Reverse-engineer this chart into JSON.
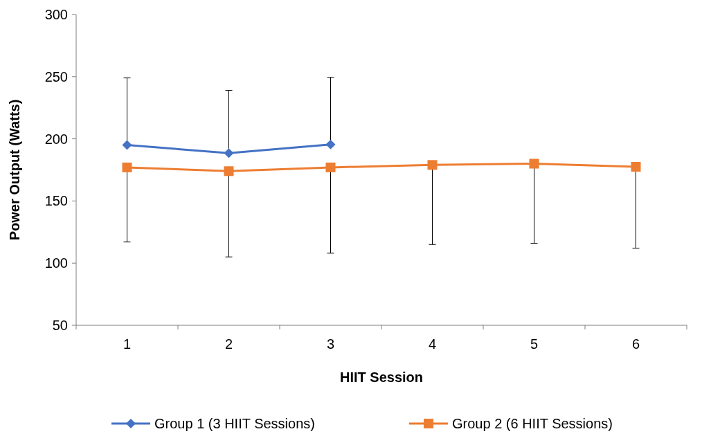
{
  "chart_data": {
    "type": "line",
    "xlabel": "HIIT Session",
    "ylabel": "Power Output (Watts)",
    "categories": [
      "1",
      "2",
      "3",
      "4",
      "5",
      "6"
    ],
    "ylim": [
      50,
      300
    ],
    "yticks": [
      50,
      100,
      150,
      200,
      250,
      300
    ],
    "grid": false,
    "legend": "bottom",
    "series": [
      {
        "name": "Group 1 (3 HIIT Sessions)",
        "color": "#4472c4",
        "marker": "diamond",
        "values": [
          195,
          188.5,
          195.5,
          null,
          null,
          null
        ],
        "errors": [
          [
            195,
            249
          ],
          [
            188.5,
            239
          ],
          [
            195.5,
            249.5
          ],
          null,
          null,
          null
        ]
      },
      {
        "name": "Group 2 (6 HIIT Sessions)",
        "color": "#ed7d31",
        "marker": "square",
        "values": [
          177,
          174,
          177,
          179,
          180,
          177.5
        ],
        "errors": [
          [
            117,
            177
          ],
          [
            105,
            174
          ],
          [
            108,
            177
          ],
          [
            115,
            179
          ],
          [
            116,
            180
          ],
          [
            112,
            177.5
          ]
        ]
      }
    ]
  }
}
